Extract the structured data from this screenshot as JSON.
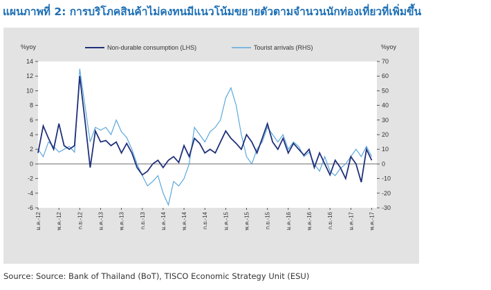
{
  "heading": "แผนภาพที่ 2: การบริโภคสินค้าไม่คงทนมีแนวโน้มขยายตัวตามจำนวนนักท่องเที่ยวที่เพิ่มขึ้น",
  "source": "Source: Source: Bank of Thailand (BoT), TISCO Economic Strategy Unit (ESU)",
  "colors": {
    "series_lhs": "#1f2f7a",
    "series_rhs": "#5ba7dc",
    "zero_line": "#6d6d6d",
    "plot_bg": "#ffffff",
    "box_bg": "#e3e3e3",
    "heading": "#1d6fb5"
  },
  "chart_data": {
    "type": "line",
    "title": "",
    "y_left_label": "%yoy",
    "y_right_label": "%yoy",
    "y_left_range": [
      -6,
      14
    ],
    "y_left_ticks": [
      14,
      12,
      10,
      8,
      6,
      4,
      2,
      0,
      -2,
      -4,
      -6
    ],
    "y_right_range": [
      -30,
      70
    ],
    "y_right_ticks": [
      70,
      60,
      50,
      40,
      30,
      20,
      10,
      0,
      -10,
      -20,
      -30
    ],
    "x_range": [
      0,
      65
    ],
    "x_tick_labels": [
      {
        "i": 0,
        "label": "ม.ค.-12"
      },
      {
        "i": 4,
        "label": "พ.ค.-12"
      },
      {
        "i": 8,
        "label": "ก.ย.-12"
      },
      {
        "i": 12,
        "label": "ม.ค.-13"
      },
      {
        "i": 16,
        "label": "พ.ค.-13"
      },
      {
        "i": 20,
        "label": "ก.ย.-13"
      },
      {
        "i": 24,
        "label": "ม.ค.-14"
      },
      {
        "i": 28,
        "label": "พ.ค.-14"
      },
      {
        "i": 32,
        "label": "ก.ย.-14"
      },
      {
        "i": 36,
        "label": "ม.ค.-15"
      },
      {
        "i": 40,
        "label": "พ.ค.-15"
      },
      {
        "i": 44,
        "label": "ก.ย.-15"
      },
      {
        "i": 48,
        "label": "ม.ค.-16"
      },
      {
        "i": 52,
        "label": "พ.ค.-16"
      },
      {
        "i": 56,
        "label": "ก.ย.-16"
      },
      {
        "i": 60,
        "label": "ม.ค.-17"
      },
      {
        "i": 64,
        "label": "พ.ค.-17"
      }
    ],
    "legend": {
      "placement": "top",
      "entries": [
        "Non-durable consumption (LHS)",
        "Tourist arrivals (RHS)"
      ]
    },
    "series": [
      {
        "name": "Non-durable consumption (LHS)",
        "axis": "left",
        "values": [
          1.5,
          5.2,
          3.5,
          2.0,
          5.5,
          2.5,
          2.0,
          2.5,
          12.0,
          6.0,
          -0.5,
          4.5,
          3.0,
          3.2,
          2.5,
          3.0,
          1.5,
          2.8,
          1.5,
          -0.5,
          -1.5,
          -1.0,
          0.0,
          0.5,
          -0.5,
          0.5,
          1.0,
          0.2,
          2.5,
          1.0,
          3.5,
          2.8,
          1.5,
          2.0,
          1.5,
          3.0,
          4.5,
          3.5,
          2.8,
          2.0,
          4.0,
          3.0,
          1.5,
          3.5,
          5.5,
          3.0,
          2.0,
          3.5,
          1.5,
          2.8,
          2.0,
          1.2,
          2.0,
          -0.5,
          1.5,
          0.0,
          -1.5,
          0.5,
          -0.5,
          -2.0,
          1.0,
          0.0,
          -2.5,
          2.0,
          0.5
        ],
        "color_key": "series_lhs"
      },
      {
        "name": "Tourist arrivals (RHS)",
        "axis": "right",
        "values": [
          10,
          5,
          15,
          12,
          8,
          10,
          12,
          8,
          65,
          40,
          15,
          25,
          23,
          25,
          20,
          30,
          22,
          18,
          10,
          0,
          -8,
          -15,
          -12,
          -8,
          -20,
          -28,
          -12,
          -15,
          -10,
          0,
          25,
          20,
          15,
          22,
          25,
          30,
          45,
          52,
          40,
          20,
          5,
          0,
          10,
          15,
          25,
          20,
          15,
          20,
          10,
          15,
          12,
          5,
          8,
          0,
          -5,
          5,
          -5,
          -8,
          -3,
          0,
          5,
          10,
          5,
          12,
          5
        ],
        "color_key": "series_rhs"
      }
    ]
  }
}
